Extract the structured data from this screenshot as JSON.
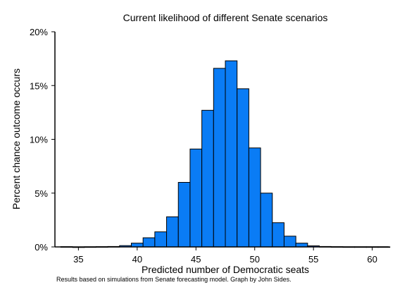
{
  "chart_data": {
    "type": "bar",
    "title": "Current likelihood of different Senate scenarios",
    "xlabel": "Predicted number of Democratic seats",
    "ylabel": "Percent chance outcome occurs",
    "note": "Results based on simulations from Senate forecasting model. Graph by John Sides.",
    "x": [
      34,
      35,
      36,
      37,
      38,
      39,
      40,
      41,
      42,
      43,
      44,
      45,
      46,
      47,
      48,
      49,
      50,
      51,
      52,
      53,
      54,
      55,
      56,
      57,
      58,
      59,
      60,
      61
    ],
    "values": [
      0.02,
      0.0,
      0.01,
      0.02,
      0.04,
      0.12,
      0.35,
      0.85,
      1.4,
      2.8,
      6.0,
      9.1,
      12.7,
      16.6,
      17.3,
      14.7,
      9.2,
      5.0,
      2.25,
      1.0,
      0.35,
      0.1,
      0.04,
      0.02,
      0.01,
      0.01,
      0.01,
      0.01
    ],
    "xlim": [
      33,
      61.4
    ],
    "ylim": [
      0,
      20
    ],
    "xticks": [
      35,
      40,
      45,
      50,
      55,
      60
    ],
    "xtick_labels": [
      "35",
      "40",
      "45",
      "50",
      "55",
      "60"
    ],
    "yticks": [
      0,
      5,
      10,
      15,
      20
    ],
    "ytick_labels": [
      "0%",
      "5%",
      "10%",
      "15%",
      "20%"
    ],
    "bar_color": "#0a7cf5",
    "edge_color": "#000000",
    "grid": false,
    "legend": "none"
  }
}
